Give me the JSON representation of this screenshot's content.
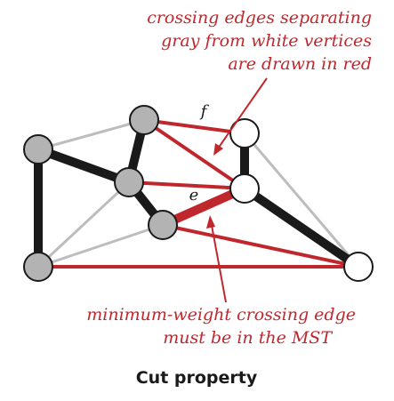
{
  "diagram": {
    "annotation_top": {
      "lines": [
        "crossing edges separating",
        "gray from white vertices",
        "are drawn in red"
      ]
    },
    "annotation_bottom": {
      "lines": [
        "minimum-weight crossing edge",
        "must be in the MST"
      ]
    },
    "edge_labels": {
      "f": "f",
      "e": "e"
    },
    "caption": "Cut property",
    "colors": {
      "red": "#c0272d",
      "black": "#1a1a1a",
      "light_gray_edge": "#bdbdbd",
      "gray_vertex": "#b3b3b3",
      "white_vertex": "#ffffff"
    }
  }
}
